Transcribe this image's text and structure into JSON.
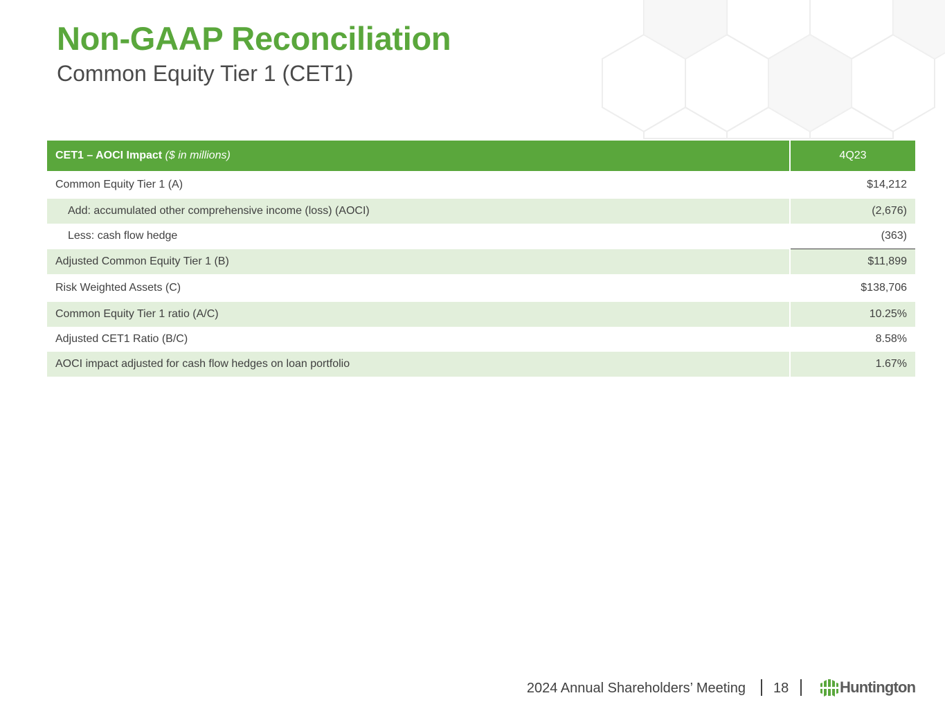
{
  "header": {
    "title": "Non-GAAP Reconciliation",
    "subtitle": "Common Equity Tier 1 (CET1)"
  },
  "table": {
    "header_label_bold": "CET1 – AOCI Impact",
    "header_label_italic": " ($ in millions)",
    "header_period": "4Q23",
    "rows": [
      {
        "label": "Common Equity Tier 1 (A)",
        "value": "$14,212"
      },
      {
        "label": "Add: accumulated other comprehensive income (loss) (AOCI)",
        "value": "(2,676)"
      },
      {
        "label": "Less: cash flow hedge",
        "value": "(363)"
      },
      {
        "label": "Adjusted Common Equity Tier 1 (B)",
        "value": "$11,899"
      },
      {
        "label": "Risk Weighted Assets (C)",
        "value": "$138,706"
      },
      {
        "label": "Common Equity Tier 1 ratio (A/C)",
        "value": "10.25%"
      },
      {
        "label": "Adjusted CET1 Ratio (B/C)",
        "value": "8.58%"
      },
      {
        "label": "AOCI impact adjusted for cash flow hedges on loan portfolio",
        "value": "1.67%"
      }
    ]
  },
  "footer": {
    "meeting": "2024 Annual Shareholders’ Meeting",
    "page_number": "18",
    "logo_text": "Huntington"
  },
  "colors": {
    "brand_green": "#5aa73c",
    "row_shade": "#e2efdb",
    "text": "#404040"
  },
  "icons": {
    "logo": "huntington-logo-icon",
    "background": "hexagon-pattern"
  }
}
